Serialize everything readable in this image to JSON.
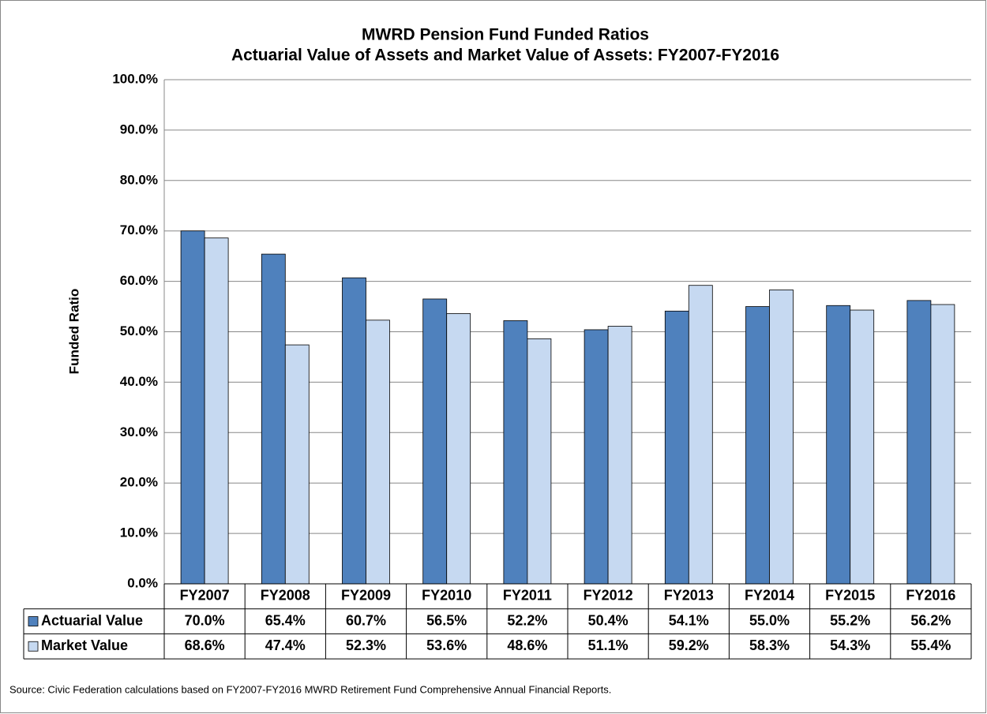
{
  "chart_data": {
    "type": "bar",
    "title": "MWRD Pension Fund Funded Ratios",
    "subtitle": "Actuarial Value of Assets and Market Value of Assets: FY2007-FY2016",
    "y_label": "Funded Ratio",
    "source": "Source: Civic Federation calculations based on FY2007-FY2016 MWRD Retirement Fund Comprehensive Annual Financial Reports.",
    "categories": [
      "FY2007",
      "FY2008",
      "FY2009",
      "FY2010",
      "FY2011",
      "FY2012",
      "FY2013",
      "FY2014",
      "FY2015",
      "FY2016"
    ],
    "series": [
      {
        "name": "Actuarial Value",
        "color": "#4f81bd",
        "values": [
          70.0,
          65.4,
          60.7,
          56.5,
          52.2,
          50.4,
          54.1,
          55.0,
          55.2,
          56.2
        ],
        "value_labels": [
          "70.0%",
          "65.4%",
          "60.7%",
          "56.5%",
          "52.2%",
          "50.4%",
          "54.1%",
          "55.0%",
          "55.2%",
          "56.2%"
        ]
      },
      {
        "name": "Market Value",
        "color": "#c6d9f1",
        "values": [
          68.6,
          47.4,
          52.3,
          53.6,
          48.6,
          51.1,
          59.2,
          58.3,
          54.3,
          55.4
        ],
        "value_labels": [
          "68.6%",
          "47.4%",
          "52.3%",
          "53.6%",
          "48.6%",
          "51.1%",
          "59.2%",
          "58.3%",
          "54.3%",
          "55.4%"
        ]
      }
    ],
    "ylim": [
      0,
      100
    ],
    "yticks": [
      {
        "value": 0,
        "label": "0.0%"
      },
      {
        "value": 10,
        "label": "10.0%"
      },
      {
        "value": 20,
        "label": "20.0%"
      },
      {
        "value": 30,
        "label": "30.0%"
      },
      {
        "value": 40,
        "label": "40.0%"
      },
      {
        "value": 50,
        "label": "50.0%"
      },
      {
        "value": 60,
        "label": "60.0%"
      },
      {
        "value": 70,
        "label": "70.0%"
      },
      {
        "value": 80,
        "label": "80.0%"
      },
      {
        "value": 90,
        "label": "90.0%"
      },
      {
        "value": 100,
        "label": "100.0%"
      }
    ],
    "grid": true
  }
}
